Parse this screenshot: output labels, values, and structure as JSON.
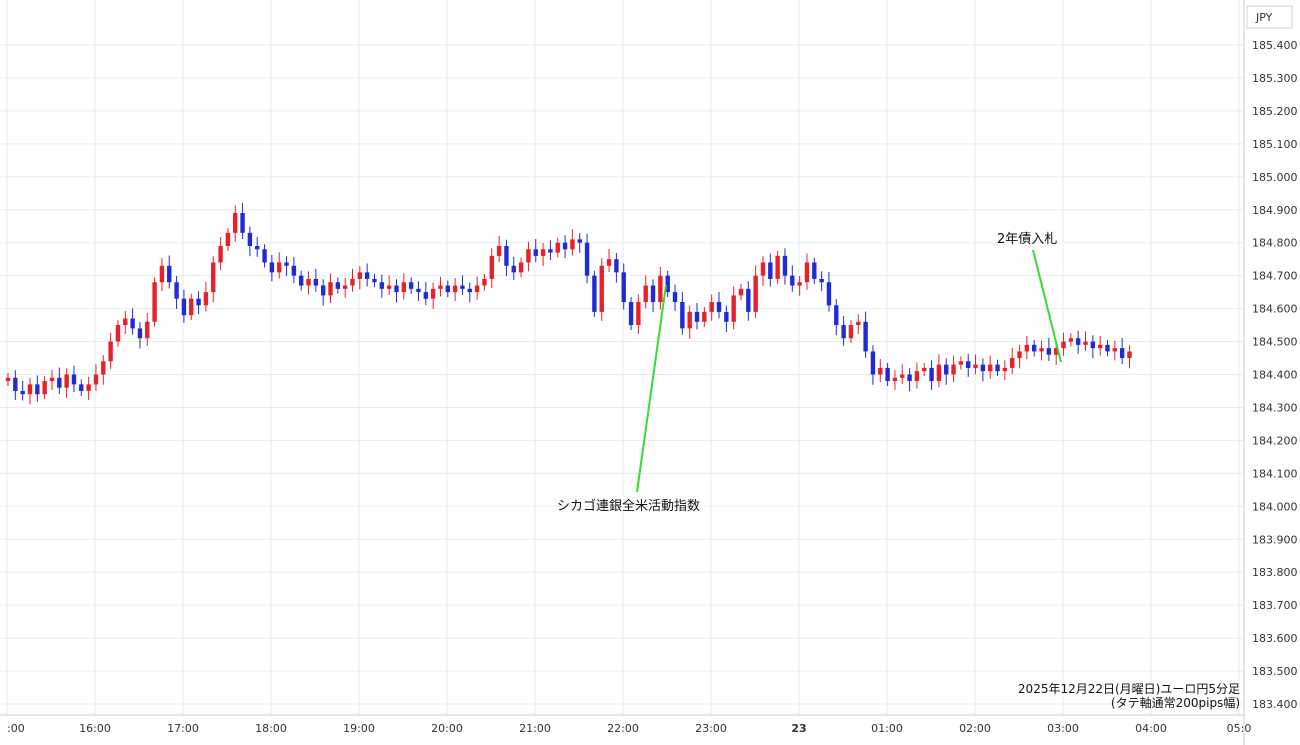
{
  "currency_label": "JPY",
  "footer": {
    "line1": "2025年12月22日(月曜日)ユーロ円5分足",
    "line2": "(タテ軸通常200pips幅)"
  },
  "colors": {
    "up": "#e8202a",
    "down": "#1f2bd6",
    "annotation_line": "#33dd33",
    "grid": "#e6eef3"
  },
  "chart_data": {
    "type": "candlestick",
    "y_axis_range": [
      183.4,
      185.45
    ],
    "y_ticks": [
      "185.400",
      "185.300",
      "185.200",
      "185.100",
      "185.000",
      "184.900",
      "184.800",
      "184.700",
      "184.600",
      "184.500",
      "184.400",
      "184.300",
      "184.200",
      "184.100",
      "184.000",
      "183.900",
      "183.800",
      "183.700",
      "183.600",
      "183.500",
      "183.400"
    ],
    "x_ticks": [
      {
        "label": ":00",
        "bold": false
      },
      {
        "label": "16:00",
        "bold": false
      },
      {
        "label": "17:00",
        "bold": false
      },
      {
        "label": "18:00",
        "bold": false
      },
      {
        "label": "19:00",
        "bold": false
      },
      {
        "label": "20:00",
        "bold": false
      },
      {
        "label": "21:00",
        "bold": false
      },
      {
        "label": "22:00",
        "bold": false
      },
      {
        "label": "23:00",
        "bold": false
      },
      {
        "label": "23",
        "bold": true
      },
      {
        "label": "01:00",
        "bold": false
      },
      {
        "label": "02:00",
        "bold": false
      },
      {
        "label": "03:00",
        "bold": false
      },
      {
        "label": "04:00",
        "bold": false
      },
      {
        "label": "05:0",
        "bold": false
      }
    ],
    "interval": "5分足",
    "closes": [
      184.39,
      184.35,
      184.34,
      184.37,
      184.34,
      184.38,
      184.39,
      184.36,
      184.4,
      184.37,
      184.35,
      184.37,
      184.4,
      184.44,
      184.5,
      184.55,
      184.57,
      184.54,
      184.51,
      184.56,
      184.68,
      184.73,
      184.68,
      184.63,
      184.58,
      184.63,
      184.61,
      184.65,
      184.74,
      184.79,
      184.83,
      184.89,
      184.83,
      184.79,
      184.78,
      184.74,
      184.71,
      184.74,
      184.73,
      184.7,
      184.67,
      184.69,
      184.67,
      184.64,
      184.68,
      184.66,
      184.67,
      184.69,
      184.71,
      184.69,
      184.68,
      184.66,
      184.67,
      184.65,
      184.68,
      184.66,
      184.65,
      184.63,
      184.66,
      184.67,
      184.65,
      184.67,
      184.66,
      184.65,
      184.67,
      184.69,
      184.76,
      184.79,
      184.73,
      184.71,
      184.74,
      184.78,
      184.76,
      184.78,
      184.77,
      184.8,
      184.78,
      184.81,
      184.8,
      184.7,
      184.59,
      184.73,
      184.75,
      184.71,
      184.62,
      184.55,
      184.62,
      184.67,
      184.62,
      184.7,
      184.65,
      184.62,
      184.54,
      184.59,
      184.56,
      184.59,
      184.62,
      184.59,
      184.56,
      184.64,
      184.66,
      184.59,
      184.7,
      184.74,
      184.69,
      184.76,
      184.7,
      184.67,
      184.68,
      184.74,
      184.69,
      184.68,
      184.61,
      184.55,
      184.51,
      184.55,
      184.56,
      184.47,
      184.4,
      184.42,
      184.38,
      184.39,
      184.4,
      184.38,
      184.41,
      184.42,
      184.38,
      184.43,
      184.4,
      184.43,
      184.44,
      184.42,
      184.43,
      184.41,
      184.43,
      184.41,
      184.42,
      184.45,
      184.47,
      184.49,
      184.47,
      184.48,
      184.46,
      184.48,
      184.5,
      184.51,
      184.49,
      184.5,
      184.48,
      184.49,
      184.47,
      184.48,
      184.45,
      184.47
    ],
    "annotations": [
      {
        "text": "シカゴ連銀全米活動指数",
        "time": "22:30"
      },
      {
        "text": "2年債入札",
        "time": "03:00"
      }
    ]
  }
}
